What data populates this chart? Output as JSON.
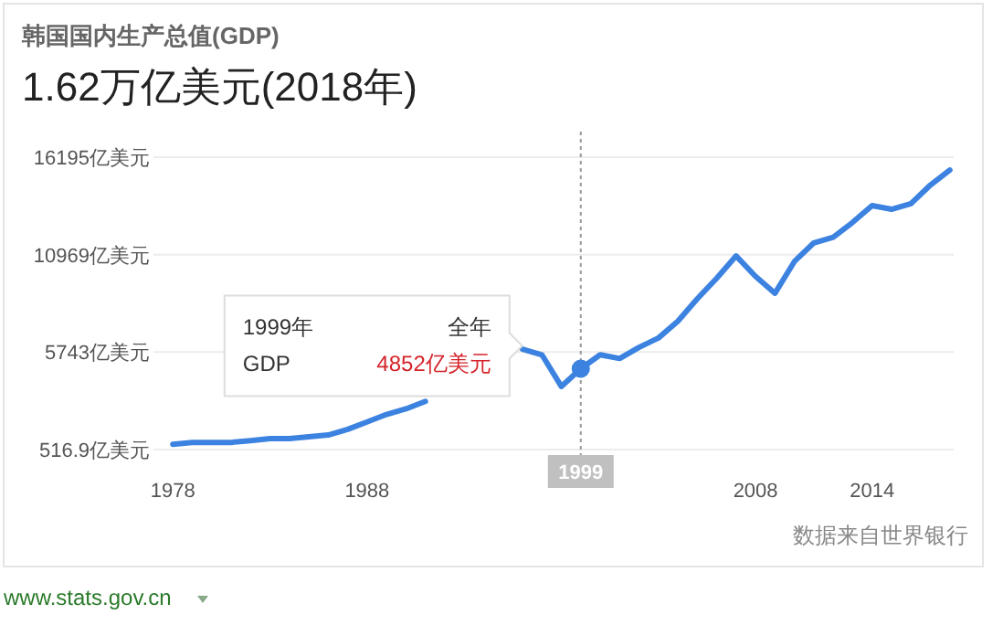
{
  "chart_data": {
    "type": "line",
    "title": "韩国国内生产总值(GDP)",
    "subtitle": "1.62万亿美元(2018年)",
    "x": [
      1978,
      1979,
      1980,
      1981,
      1982,
      1983,
      1984,
      1985,
      1986,
      1987,
      1988,
      1989,
      1990,
      1991,
      1992,
      1993,
      1994,
      1995,
      1996,
      1997,
      1998,
      1999,
      2000,
      2001,
      2002,
      2003,
      2004,
      2005,
      2006,
      2007,
      2008,
      2009,
      2010,
      2011,
      2012,
      2013,
      2014,
      2015,
      2016,
      2017,
      2018
    ],
    "series": [
      {
        "color": "#3c82e0",
        "values": [
          800,
          900,
          900,
          900,
          1000,
          1100,
          1100,
          1200,
          1300,
          1600,
          2000,
          2400,
          2700,
          3100,
          null,
          null,
          null,
          null,
          5900,
          5600,
          3900,
          4852,
          5600,
          5400,
          6000,
          6500,
          7400,
          8600,
          9700,
          10900,
          9800,
          8900,
          10600,
          11600,
          11900,
          12700,
          13600,
          13400,
          13700,
          14700,
          15500
        ]
      }
    ],
    "xlim": [
      1977,
      2018.2
    ],
    "xticks": [
      1978,
      1988,
      2008,
      2014
    ],
    "ylim": [
      516.9,
      16195
    ],
    "yticks": [
      {
        "value": 516.9,
        "label": "516.9亿美元"
      },
      {
        "value": 5743,
        "label": "5743亿美元"
      },
      {
        "value": 10969,
        "label": "10969亿美元"
      },
      {
        "value": 16195,
        "label": "16195亿美元"
      }
    ],
    "grid": "y",
    "marker": "none",
    "line_style": "solid",
    "ref_lines": [
      {
        "axis": "x",
        "value": 1999,
        "label": "1999",
        "color": "#999999",
        "line_style": "dotted"
      }
    ],
    "annotations": [
      "1999年",
      "全年",
      "GDP",
      "4852亿美元",
      "数据来自世界银行",
      "www.stats.gov.cn"
    ]
  }
}
